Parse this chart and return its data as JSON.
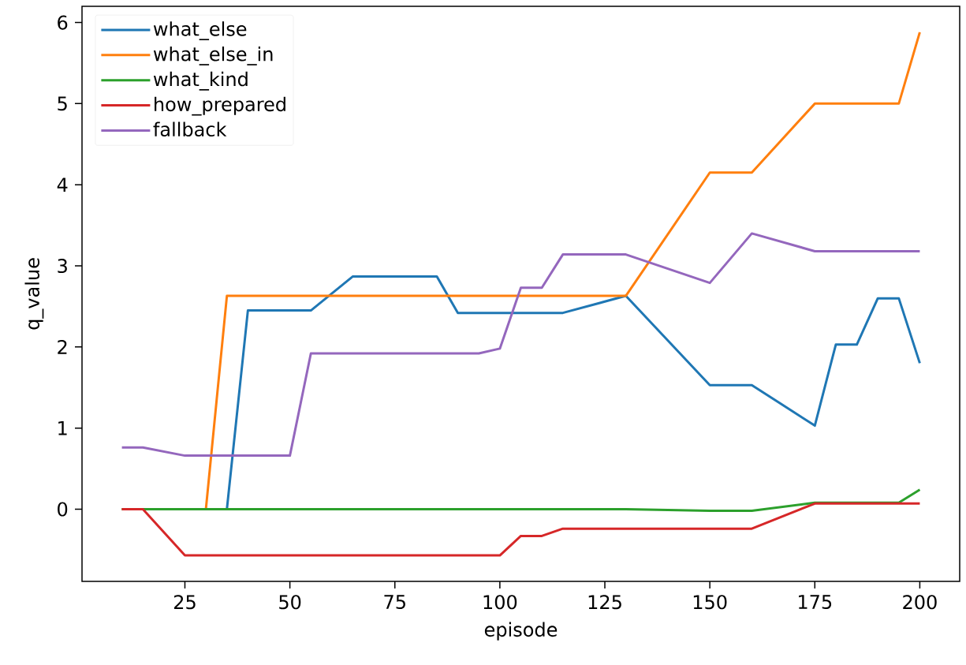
{
  "chart_data": {
    "type": "line",
    "xlabel": "episode",
    "ylabel": "q_value",
    "xlim": [
      0.5,
      209.5
    ],
    "ylim": [
      -0.89,
      6.2
    ],
    "xticks": [
      25,
      50,
      75,
      100,
      125,
      150,
      175,
      200
    ],
    "yticks": [
      0,
      1,
      2,
      3,
      4,
      5,
      6
    ],
    "legend": "top left",
    "grid": false,
    "marker": "none",
    "line_style": "solid",
    "series": [
      {
        "name": "what_else",
        "color": "#1f77b4",
        "x": [
          10,
          35,
          40,
          55,
          65,
          85,
          90,
          115,
          130,
          150,
          160,
          175,
          180,
          185,
          190,
          195,
          200
        ],
        "values": [
          0,
          0,
          2.45,
          2.45,
          2.87,
          2.87,
          2.42,
          2.42,
          2.63,
          1.53,
          1.53,
          1.03,
          2.03,
          2.03,
          2.6,
          2.6,
          1.8
        ]
      },
      {
        "name": "what_else_in",
        "color": "#ff7f0e",
        "x": [
          10,
          30,
          35,
          130,
          150,
          160,
          175,
          195,
          200
        ],
        "values": [
          0,
          0,
          2.63,
          2.63,
          4.15,
          4.15,
          5.0,
          5.0,
          5.88
        ]
      },
      {
        "name": "what_kind",
        "color": "#2ca02c",
        "x": [
          10,
          130,
          150,
          160,
          175,
          195,
          200
        ],
        "values": [
          0,
          0,
          -0.02,
          -0.02,
          0.08,
          0.08,
          0.24
        ]
      },
      {
        "name": "how_prepared",
        "color": "#d62728",
        "x": [
          10,
          15,
          25,
          100,
          105,
          110,
          115,
          160,
          175,
          200
        ],
        "values": [
          0,
          0,
          -0.57,
          -0.57,
          -0.33,
          -0.33,
          -0.24,
          -0.24,
          0.07,
          0.07
        ]
      },
      {
        "name": "fallback",
        "color": "#9467bd",
        "x": [
          10,
          15,
          25,
          50,
          55,
          95,
          100,
          105,
          110,
          115,
          130,
          150,
          160,
          175,
          200
        ],
        "values": [
          0.76,
          0.76,
          0.66,
          0.66,
          1.92,
          1.92,
          1.98,
          2.73,
          2.73,
          3.14,
          3.14,
          2.79,
          3.4,
          3.18,
          3.18
        ]
      }
    ]
  }
}
